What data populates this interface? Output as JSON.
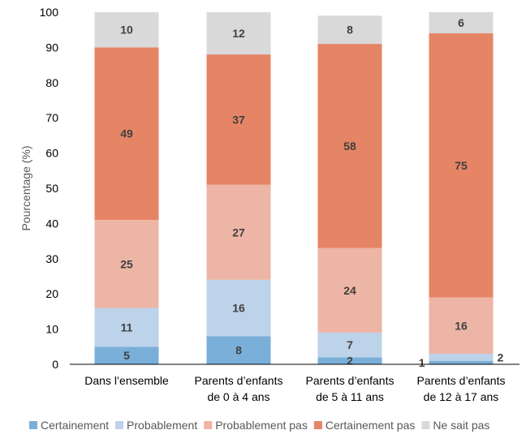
{
  "chart_data": {
    "type": "bar",
    "stacked": true,
    "title": "",
    "xlabel": "",
    "ylabel": "Pourcentage (%)",
    "ylim": [
      0,
      100
    ],
    "yticks": [
      0,
      10,
      20,
      30,
      40,
      50,
      60,
      70,
      80,
      90,
      100
    ],
    "grid": false,
    "legend_position": "bottom",
    "categories": [
      [
        "Dans l’ensemble"
      ],
      [
        "Parents d’enfants",
        "de 0 à 4 ans"
      ],
      [
        "Parents d’enfants",
        "de 5 à 11 ans"
      ],
      [
        "Parents d’enfants",
        "de 12 à 17 ans"
      ]
    ],
    "series": [
      {
        "name": "Certainement",
        "color": "#7AAFD9",
        "values": [
          5,
          8,
          2,
          1
        ]
      },
      {
        "name": "Probablement",
        "color": "#BDD3EA",
        "values": [
          11,
          16,
          7,
          2
        ]
      },
      {
        "name": "Probablement pas",
        "color": "#EDB5A5",
        "values": [
          25,
          27,
          24,
          16
        ]
      },
      {
        "name": "Certainement pas",
        "color": "#E68466",
        "values": [
          49,
          37,
          58,
          75
        ]
      },
      {
        "name": "Ne sait pas",
        "color": "#D9D9D9",
        "values": [
          10,
          12,
          8,
          6
        ]
      }
    ]
  }
}
